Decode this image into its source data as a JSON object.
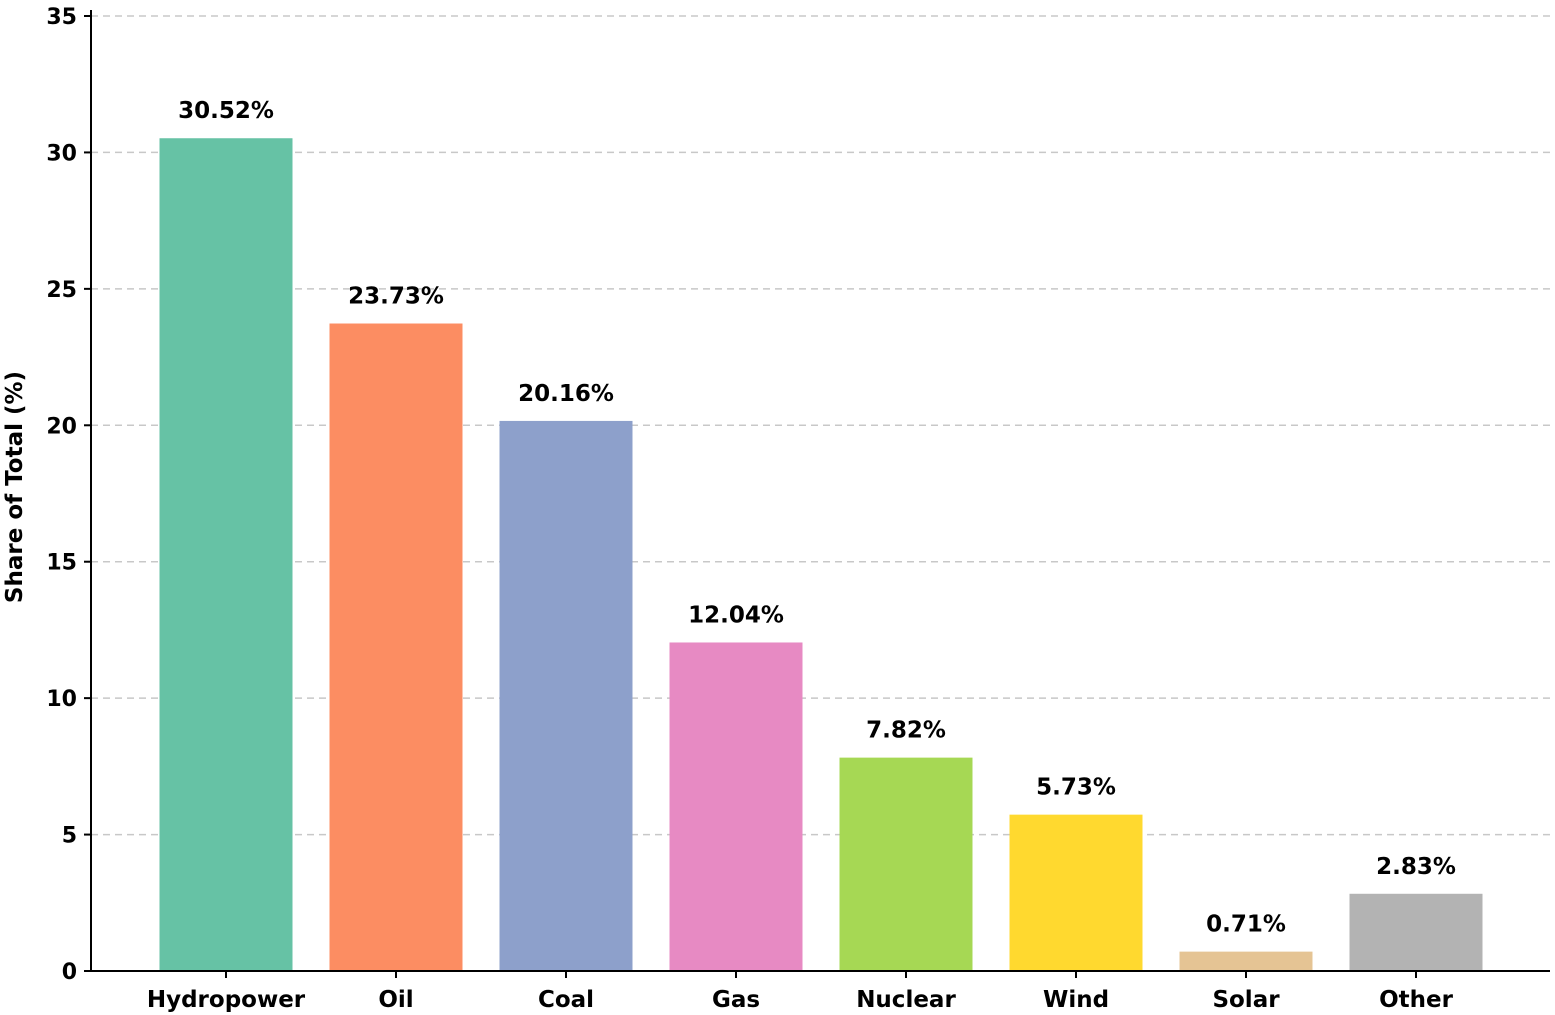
{
  "chart_data": {
    "type": "bar",
    "title": "",
    "xlabel": "",
    "ylabel": "Share of Total (%)",
    "categories": [
      "Hydropower",
      "Oil",
      "Coal",
      "Gas",
      "Nuclear",
      "Wind",
      "Solar",
      "Other"
    ],
    "values": [
      30.52,
      23.73,
      20.16,
      12.04,
      7.82,
      5.73,
      0.71,
      2.83
    ],
    "data_labels": [
      "30.52%",
      "23.73%",
      "20.16%",
      "12.04%",
      "7.82%",
      "5.73%",
      "0.71%",
      "2.83%"
    ],
    "colors": [
      "#66c2a5",
      "#fc8d62",
      "#8da0cb",
      "#e78ac3",
      "#a6d854",
      "#ffd92f",
      "#e5c494",
      "#b3b3b3"
    ],
    "ylim": [
      0,
      35
    ],
    "yticks": [
      0,
      5,
      10,
      15,
      20,
      25,
      30,
      35
    ],
    "grid": "y-dashed",
    "legend": "none"
  }
}
